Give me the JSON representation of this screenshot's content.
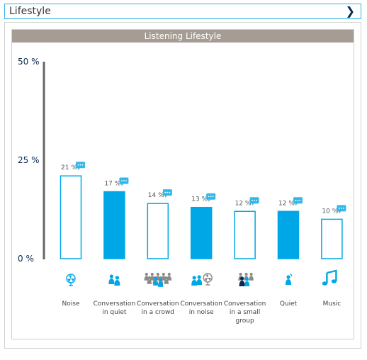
{
  "header": {
    "title": "Lifestyle",
    "chevron_icon": "chevron-right-icon"
  },
  "chart_data": {
    "type": "bar",
    "title": "Listening Lifestyle",
    "categories": [
      "Noise",
      "Conversation in quiet",
      "Conversation in a crowd",
      "Conversation in noise",
      "Conversation in a small group",
      "Quiet",
      "Music"
    ],
    "category_lines": [
      [
        "Noise"
      ],
      [
        "Conversation",
        "in quiet"
      ],
      [
        "Conversation",
        "in a crowd"
      ],
      [
        "Conversation",
        "in noise"
      ],
      [
        "Conversation",
        "in a small",
        "group"
      ],
      [
        "Quiet"
      ],
      [
        "Music"
      ]
    ],
    "values": [
      21,
      17,
      14,
      13,
      12,
      12,
      10
    ],
    "value_labels": [
      "21 %",
      "17 %",
      "14 %",
      "13 %",
      "12 %",
      "12 %",
      "10 %"
    ],
    "filled": [
      false,
      true,
      false,
      true,
      false,
      true,
      false
    ],
    "icons": [
      "fan-icon",
      "two-people-icon",
      "crowd-icon",
      "people-fan-icon",
      "small-group-icon",
      "person-icon",
      "music-note-icon"
    ],
    "ylim": [
      0,
      50
    ],
    "yticks": [
      "0 %",
      "25 %",
      "50 %"
    ],
    "colors": {
      "bar": "#00a7e7",
      "axis": "#666666",
      "tick": "#0b2a52",
      "title_bg": "#a59d93"
    }
  }
}
